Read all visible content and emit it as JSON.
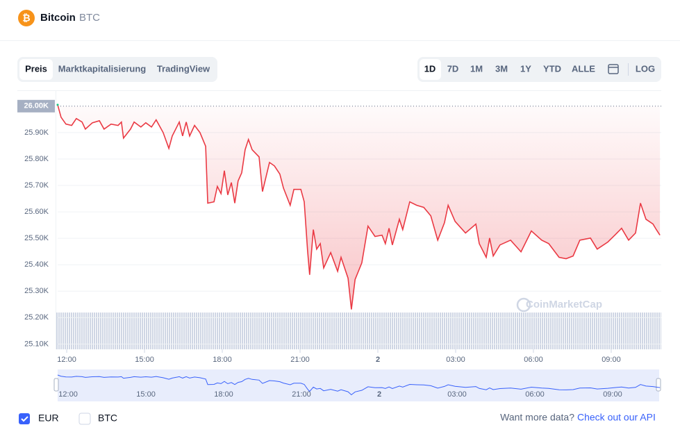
{
  "header": {
    "name": "Bitcoin",
    "symbol": "BTC"
  },
  "tabs": [
    "Preis",
    "Marktkapitalisierung",
    "TradingView"
  ],
  "ranges": [
    "1D",
    "7D",
    "1M",
    "3M",
    "1Y",
    "YTD",
    "ALLE"
  ],
  "log": "LOG",
  "watermark": "CoinMarketCap",
  "currencies": [
    "EUR",
    "BTC"
  ],
  "footer": {
    "question": "Want more data?",
    "link": "Check out our API"
  },
  "chart_data": {
    "type": "line",
    "x": [
      11.65,
      11.78,
      11.97,
      12.19,
      12.37,
      12.59,
      12.72,
      12.99,
      13.26,
      13.44,
      13.71,
      13.98,
      14.11,
      14.19,
      14.46,
      14.6,
      14.86,
      15.05,
      15.27,
      15.45,
      15.72,
      15.94,
      16.07,
      16.34,
      16.47,
      16.61,
      16.74,
      16.93,
      17.14,
      17.36,
      17.44,
      17.68,
      17.81,
      17.95,
      18.08,
      18.21,
      18.35,
      18.48,
      18.61,
      18.75,
      18.88,
      19.01,
      19.15,
      19.42,
      19.55,
      19.82,
      20.01,
      20.22,
      20.36,
      20.62,
      20.76,
      21.03,
      21.16,
      21.29,
      21.37,
      21.51,
      21.64,
      21.78,
      21.91,
      22.18,
      22.45,
      22.58,
      22.85,
      22.98,
      23.12,
      23.38,
      23.62,
      23.89,
      24.16,
      24.29,
      24.43,
      24.56,
      24.83,
      24.96,
      25.23,
      25.5,
      25.77,
      26.04,
      26.31,
      26.57,
      26.71,
      26.98,
      27.38,
      27.78,
      27.91,
      28.18,
      28.31,
      28.45,
      28.71,
      29.12,
      29.52,
      29.92,
      30.32,
      30.59,
      30.99,
      31.26,
      31.53,
      31.79,
      32.2,
      32.46,
      32.87,
      33.14,
      33.4,
      33.67,
      33.94,
      34.13,
      34.34,
      34.61,
      34.74,
      34.88
    ],
    "series": [
      {
        "name": "EUR",
        "color": "#ea3943",
        "values": [
          26.005,
          25.958,
          25.932,
          25.927,
          25.953,
          25.94,
          25.913,
          25.937,
          25.945,
          25.913,
          25.932,
          25.927,
          25.94,
          25.879,
          25.913,
          25.94,
          25.921,
          25.937,
          25.921,
          25.948,
          25.9,
          25.84,
          25.887,
          25.94,
          25.887,
          25.94,
          25.887,
          25.927,
          25.9,
          25.848,
          25.633,
          25.638,
          25.696,
          25.669,
          25.756,
          25.664,
          25.711,
          25.633,
          25.717,
          25.748,
          25.835,
          25.874,
          25.835,
          25.808,
          25.677,
          25.787,
          25.774,
          25.743,
          25.69,
          25.625,
          25.685,
          25.685,
          25.638,
          25.454,
          25.362,
          25.533,
          25.459,
          25.48,
          25.388,
          25.446,
          25.375,
          25.428,
          25.349,
          25.231,
          25.344,
          25.407,
          25.546,
          25.507,
          25.512,
          25.48,
          25.538,
          25.475,
          25.572,
          25.533,
          25.638,
          25.625,
          25.617,
          25.585,
          25.493,
          25.559,
          25.625,
          25.564,
          25.52,
          25.554,
          25.48,
          25.428,
          25.501,
          25.433,
          25.475,
          25.493,
          25.449,
          25.528,
          25.493,
          25.48,
          25.428,
          25.423,
          25.433,
          25.493,
          25.501,
          25.459,
          25.486,
          25.512,
          25.538,
          25.493,
          25.52,
          25.633,
          25.572,
          25.554,
          25.533,
          25.512
        ]
      }
    ],
    "xlim": [
      11.65,
      34.93
    ],
    "xticks": [
      {
        "value": 12,
        "label": "12:00"
      },
      {
        "value": 15,
        "label": "15:00"
      },
      {
        "value": 18,
        "label": "18:00"
      },
      {
        "value": 21,
        "label": "21:00"
      },
      {
        "value": 24,
        "label": "2"
      },
      {
        "value": 27,
        "label": "03:00"
      },
      {
        "value": 30,
        "label": "06:00"
      },
      {
        "value": 33,
        "label": "09:00"
      }
    ],
    "ylim": [
      25.08,
      26.06
    ],
    "yticks": [
      {
        "value": 25.1,
        "label": "25.10K"
      },
      {
        "value": 25.2,
        "label": "25.20K"
      },
      {
        "value": 25.3,
        "label": "25.30K"
      },
      {
        "value": 25.4,
        "label": "25.40K"
      },
      {
        "value": 25.5,
        "label": "25.50K"
      },
      {
        "value": 25.6,
        "label": "25.60K"
      },
      {
        "value": 25.7,
        "label": "25.70K"
      },
      {
        "value": 25.8,
        "label": "25.80K"
      },
      {
        "value": 25.9,
        "label": "25.90K"
      },
      {
        "value": 26,
        "label": "26.00K"
      }
    ],
    "grid": true
  }
}
